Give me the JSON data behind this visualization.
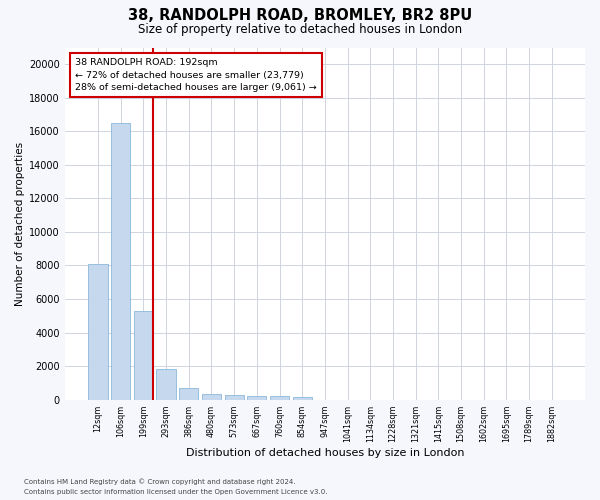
{
  "title": "38, RANDOLPH ROAD, BROMLEY, BR2 8PU",
  "subtitle": "Size of property relative to detached houses in London",
  "xlabel": "Distribution of detached houses by size in London",
  "ylabel": "Number of detached properties",
  "bar_labels": [
    "12sqm",
    "106sqm",
    "199sqm",
    "293sqm",
    "386sqm",
    "480sqm",
    "573sqm",
    "667sqm",
    "760sqm",
    "854sqm",
    "947sqm",
    "1041sqm",
    "1134sqm",
    "1228sqm",
    "1321sqm",
    "1415sqm",
    "1508sqm",
    "1602sqm",
    "1695sqm",
    "1789sqm",
    "1882sqm"
  ],
  "bar_values": [
    8100,
    16500,
    5300,
    1850,
    700,
    350,
    270,
    220,
    185,
    130,
    0,
    0,
    0,
    0,
    0,
    0,
    0,
    0,
    0,
    0,
    0
  ],
  "bar_color": "#c6d8ee",
  "bar_edge_color": "#7aaed4",
  "property_bar_index": 2,
  "vline_color": "#cc0000",
  "ylim_max": 21000,
  "yticks": [
    0,
    2000,
    4000,
    6000,
    8000,
    10000,
    12000,
    14000,
    16000,
    18000,
    20000
  ],
  "annotation_title": "38 RANDOLPH ROAD: 192sqm",
  "annotation_line1": "← 72% of detached houses are smaller (23,779)",
  "annotation_line2": "28% of semi-detached houses are larger (9,061) →",
  "footnote1": "Contains HM Land Registry data © Crown copyright and database right 2024.",
  "footnote2": "Contains public sector information licensed under the Open Government Licence v3.0.",
  "fig_bg": "#f5f7fc",
  "plot_bg": "#ffffff",
  "grid_color": "#d0d4de",
  "title_fontsize": 10.5,
  "subtitle_fontsize": 8.5,
  "ylabel_fontsize": 7.5,
  "xlabel_fontsize": 8.0,
  "tick_fontsize": 7.0,
  "xtick_fontsize": 5.8,
  "ann_fontsize": 6.8,
  "footnote_fontsize": 5.0
}
